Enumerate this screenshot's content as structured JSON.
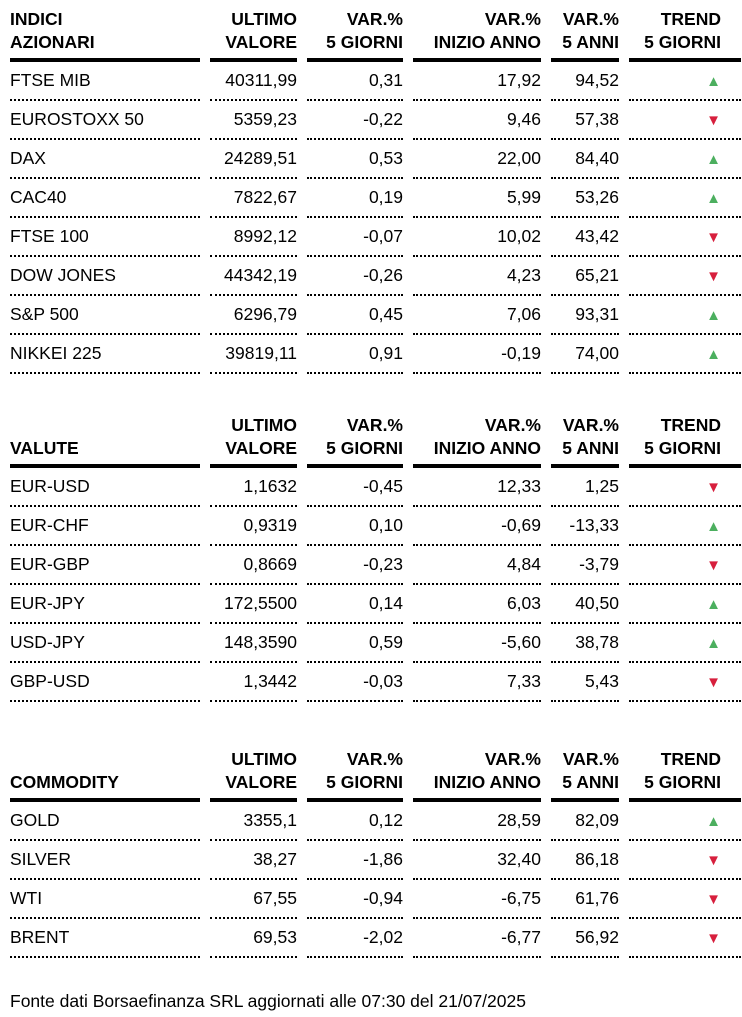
{
  "colors": {
    "trend_up": "#4caf5f",
    "trend_down": "#d71f3d",
    "text": "#000000",
    "background": "#ffffff"
  },
  "icons": {
    "up": "▲",
    "down": "▼"
  },
  "footer": {
    "text": "Fonte dati Borsaefinanza SRL aggiornati alle 07:30 del 21/07/2025"
  },
  "chart_data": [
    {
      "type": "table",
      "title": {
        "top": "INDICI",
        "bottom": "AZIONARI"
      },
      "columns": [
        {
          "top": "ULTIMO",
          "bottom": "VALORE"
        },
        {
          "top": "VAR.%",
          "bottom": "5 GIORNI"
        },
        {
          "top": "VAR.%",
          "bottom": "INIZIO ANNO"
        },
        {
          "top": "VAR.%",
          "bottom": "5 ANNI"
        },
        {
          "top": "TREND",
          "bottom": "5 GIORNI"
        }
      ],
      "rows": [
        {
          "name": "FTSE MIB",
          "last": "40311,99",
          "var_5d": "0,31",
          "var_ytd": "17,92",
          "var_5y": "94,52",
          "trend": "up"
        },
        {
          "name": "EUROSTOXX 50",
          "last": "5359,23",
          "var_5d": "-0,22",
          "var_ytd": "9,46",
          "var_5y": "57,38",
          "trend": "down"
        },
        {
          "name": "DAX",
          "last": "24289,51",
          "var_5d": "0,53",
          "var_ytd": "22,00",
          "var_5y": "84,40",
          "trend": "up"
        },
        {
          "name": "CAC40",
          "last": "7822,67",
          "var_5d": "0,19",
          "var_ytd": "5,99",
          "var_5y": "53,26",
          "trend": "up"
        },
        {
          "name": "FTSE 100",
          "last": "8992,12",
          "var_5d": "-0,07",
          "var_ytd": "10,02",
          "var_5y": "43,42",
          "trend": "down"
        },
        {
          "name": "DOW JONES",
          "last": "44342,19",
          "var_5d": "-0,26",
          "var_ytd": "4,23",
          "var_5y": "65,21",
          "trend": "down"
        },
        {
          "name": "S&P 500",
          "last": "6296,79",
          "var_5d": "0,45",
          "var_ytd": "7,06",
          "var_5y": "93,31",
          "trend": "up"
        },
        {
          "name": "NIKKEI 225",
          "last": "39819,11",
          "var_5d": "0,91",
          "var_ytd": "-0,19",
          "var_5y": "74,00",
          "trend": "up"
        }
      ]
    },
    {
      "type": "table",
      "title": {
        "top": "",
        "bottom": "VALUTE"
      },
      "columns": [
        {
          "top": "ULTIMO",
          "bottom": "VALORE"
        },
        {
          "top": "VAR.%",
          "bottom": "5 GIORNI"
        },
        {
          "top": "VAR.%",
          "bottom": "INIZIO ANNO"
        },
        {
          "top": "VAR.%",
          "bottom": "5 ANNI"
        },
        {
          "top": "TREND",
          "bottom": "5 GIORNI"
        }
      ],
      "rows": [
        {
          "name": "EUR-USD",
          "last": "1,1632",
          "var_5d": "-0,45",
          "var_ytd": "12,33",
          "var_5y": "1,25",
          "trend": "down"
        },
        {
          "name": "EUR-CHF",
          "last": "0,9319",
          "var_5d": "0,10",
          "var_ytd": "-0,69",
          "var_5y": "-13,33",
          "trend": "up"
        },
        {
          "name": "EUR-GBP",
          "last": "0,8669",
          "var_5d": "-0,23",
          "var_ytd": "4,84",
          "var_5y": "-3,79",
          "trend": "down"
        },
        {
          "name": "EUR-JPY",
          "last": "172,5500",
          "var_5d": "0,14",
          "var_ytd": "6,03",
          "var_5y": "40,50",
          "trend": "up"
        },
        {
          "name": "USD-JPY",
          "last": "148,3590",
          "var_5d": "0,59",
          "var_ytd": "-5,60",
          "var_5y": "38,78",
          "trend": "up"
        },
        {
          "name": "GBP-USD",
          "last": "1,3442",
          "var_5d": "-0,03",
          "var_ytd": "7,33",
          "var_5y": "5,43",
          "trend": "down"
        }
      ]
    },
    {
      "type": "table",
      "title": {
        "top": "",
        "bottom": "COMMODITY"
      },
      "columns": [
        {
          "top": "ULTIMO",
          "bottom": "VALORE"
        },
        {
          "top": "VAR.%",
          "bottom": "5 GIORNI"
        },
        {
          "top": "VAR.%",
          "bottom": "INIZIO ANNO"
        },
        {
          "top": "VAR.%",
          "bottom": "5 ANNI"
        },
        {
          "top": "TREND",
          "bottom": "5 GIORNI"
        }
      ],
      "rows": [
        {
          "name": "GOLD",
          "last": "3355,1",
          "var_5d": "0,12",
          "var_ytd": "28,59",
          "var_5y": "82,09",
          "trend": "up"
        },
        {
          "name": "SILVER",
          "last": "38,27",
          "var_5d": "-1,86",
          "var_ytd": "32,40",
          "var_5y": "86,18",
          "trend": "down"
        },
        {
          "name": "WTI",
          "last": "67,55",
          "var_5d": "-0,94",
          "var_ytd": "-6,75",
          "var_5y": "61,76",
          "trend": "down"
        },
        {
          "name": "BRENT",
          "last": "69,53",
          "var_5d": "-2,02",
          "var_ytd": "-6,77",
          "var_5y": "56,92",
          "trend": "down"
        }
      ]
    }
  ]
}
